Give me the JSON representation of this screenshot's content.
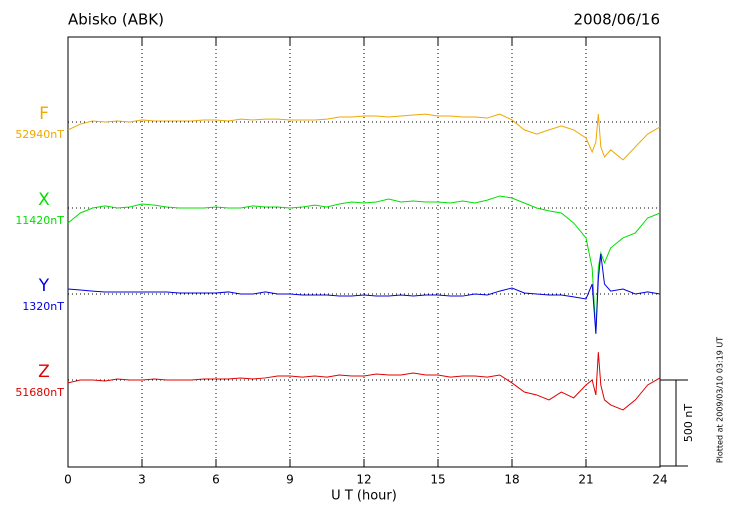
{
  "chart_data": {
    "type": "line",
    "title": "Abisko (ABK)",
    "date": "2008/06/16",
    "x_label": "U T (hour)",
    "footnote": "Plotted at 2009/03/10 03:19 UT",
    "scale_bar": {
      "value": 500,
      "label": "500 nT"
    },
    "xlim": [
      0,
      24
    ],
    "xticks": [
      0,
      3,
      6,
      9,
      12,
      15,
      18,
      21,
      24
    ],
    "grid": true,
    "x": [
      0,
      0.5,
      1,
      1.5,
      2,
      2.5,
      3,
      3.5,
      4,
      4.5,
      5,
      5.5,
      6,
      6.5,
      7,
      7.5,
      8,
      8.5,
      9,
      9.5,
      10,
      10.5,
      11,
      11.5,
      12,
      12.5,
      13,
      13.5,
      14,
      14.5,
      15,
      15.5,
      16,
      16.5,
      17,
      17.5,
      18,
      18.5,
      19,
      19.5,
      20,
      20.5,
      21,
      21.25,
      21.4,
      21.5,
      21.6,
      21.75,
      22,
      22.5,
      23,
      23.5,
      24
    ],
    "series": [
      {
        "name": "F",
        "color": "#f0a800",
        "baseline": {
          "value": 52940,
          "label": "52940nT"
        },
        "values": [
          52894,
          52928,
          52946,
          52940,
          52946,
          52940,
          52952,
          52946,
          52946,
          52946,
          52946,
          52952,
          52952,
          52946,
          52957,
          52952,
          52957,
          52957,
          52952,
          52952,
          52952,
          52957,
          52969,
          52969,
          52975,
          52975,
          52969,
          52975,
          52981,
          52986,
          52975,
          52975,
          52969,
          52969,
          52963,
          52986,
          52952,
          52894,
          52870,
          52894,
          52917,
          52894,
          52847,
          52766,
          52824,
          52986,
          52795,
          52737,
          52778,
          52720,
          52795,
          52870,
          52911
        ]
      },
      {
        "name": "X",
        "color": "#00e000",
        "baseline": {
          "value": 11420,
          "label": "11420nT"
        },
        "values": [
          11333,
          11391,
          11420,
          11432,
          11420,
          11426,
          11443,
          11437,
          11426,
          11420,
          11420,
          11420,
          11426,
          11420,
          11420,
          11432,
          11426,
          11426,
          11420,
          11426,
          11437,
          11426,
          11443,
          11455,
          11449,
          11455,
          11472,
          11455,
          11461,
          11455,
          11455,
          11449,
          11461,
          11449,
          11466,
          11490,
          11478,
          11449,
          11420,
          11403,
          11391,
          11333,
          11246,
          11072,
          10695,
          11072,
          11159,
          11101,
          11188,
          11246,
          11275,
          11362,
          11391
        ]
      },
      {
        "name": "Y",
        "color": "#0000e0",
        "baseline": {
          "value": 1320,
          "label": "1320nT"
        },
        "values": [
          1349,
          1343,
          1337,
          1332,
          1332,
          1332,
          1332,
          1332,
          1332,
          1326,
          1326,
          1326,
          1326,
          1332,
          1320,
          1320,
          1332,
          1320,
          1320,
          1314,
          1314,
          1314,
          1308,
          1308,
          1314,
          1308,
          1308,
          1314,
          1308,
          1314,
          1314,
          1308,
          1308,
          1320,
          1314,
          1337,
          1355,
          1326,
          1320,
          1314,
          1314,
          1303,
          1291,
          1378,
          1088,
          1407,
          1552,
          1378,
          1337,
          1349,
          1320,
          1332,
          1320
        ]
      },
      {
        "name": "Z",
        "color": "#e00000",
        "baseline": {
          "value": 51680,
          "label": "51680nT"
        },
        "values": [
          51663,
          51680,
          51680,
          51674,
          51686,
          51680,
          51680,
          51686,
          51680,
          51680,
          51680,
          51686,
          51686,
          51686,
          51692,
          51686,
          51692,
          51703,
          51703,
          51697,
          51703,
          51697,
          51709,
          51703,
          51703,
          51715,
          51709,
          51709,
          51721,
          51709,
          51709,
          51697,
          51703,
          51703,
          51697,
          51709,
          51663,
          51610,
          51593,
          51564,
          51610,
          51576,
          51651,
          51680,
          51593,
          51842,
          51651,
          51564,
          51535,
          51506,
          51564,
          51651,
          51692
        ]
      }
    ]
  }
}
